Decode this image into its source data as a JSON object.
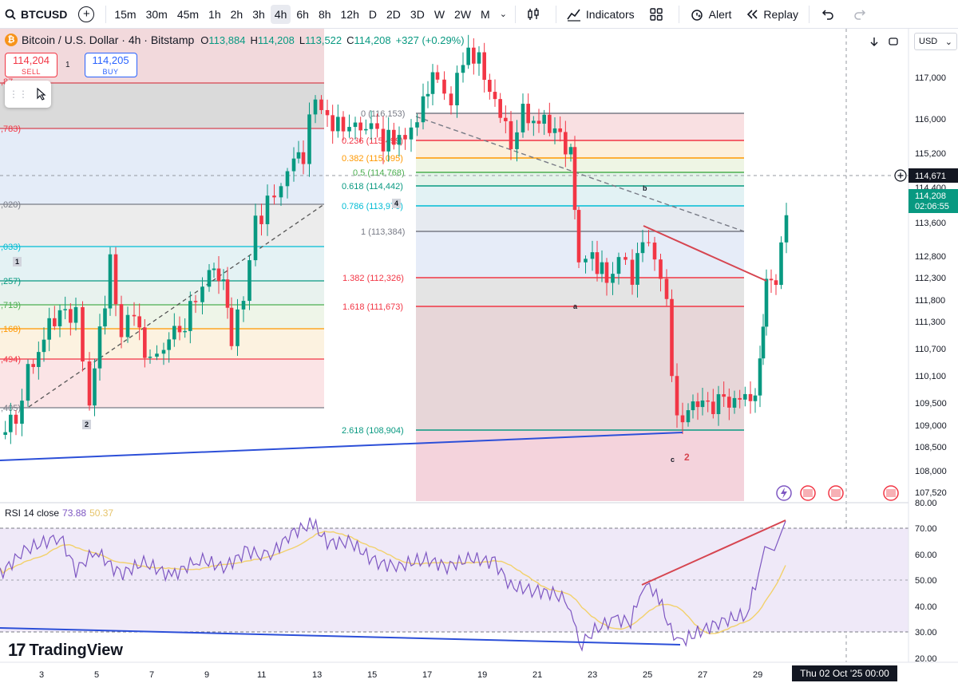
{
  "toolbar": {
    "symbol": "BTCUSD",
    "intervals": [
      "15m",
      "30m",
      "45m",
      "1h",
      "2h",
      "3h",
      "4h",
      "6h",
      "8h",
      "12h",
      "D",
      "2D",
      "3D",
      "W",
      "2W",
      "M"
    ],
    "active_interval": "4h",
    "indicators_label": "Indicators",
    "alert_label": "Alert",
    "replay_label": "Replay"
  },
  "legend": {
    "title": "Bitcoin / U.S. Dollar · 4h · Bitstamp",
    "o_label": "O",
    "o": "113,884",
    "h_label": "H",
    "h": "114,208",
    "l_label": "L",
    "l": "113,522",
    "c_label": "C",
    "c": "114,208",
    "change": "+327 (+0.29%)"
  },
  "trade": {
    "sell_price": "114,204",
    "sell_label": "SELL",
    "spread": "1",
    "buy_price": "114,205",
    "buy_label": "BUY"
  },
  "currency": "USD",
  "price_axis": {
    "ticks": [
      "117,000",
      "116,000",
      "115,200",
      "114,400",
      "113,600",
      "112,800",
      "112,300",
      "111,800",
      "111,300",
      "110,700",
      "110,100",
      "109,500",
      "109,000",
      "108,500",
      "108,000",
      "107,520"
    ],
    "crosshair_price": "114,671",
    "last_price": "114,208",
    "countdown": "02:06:55"
  },
  "fib_left": {
    "labels": [
      ",87..",
      ",783)",
      ",020)",
      ",033)",
      ",257)",
      ",713)",
      ",168)",
      ",494)",
      ",405)"
    ]
  },
  "fib_right": {
    "levels": [
      {
        "label": "0 (116,153)",
        "color": "#787b86"
      },
      {
        "label": "0.236 (115,499)",
        "color": "#f23645"
      },
      {
        "label": "0.382 (115,095)",
        "color": "#ff9800"
      },
      {
        "label": "0.5 (114,768)",
        "color": "#4caf50"
      },
      {
        "label": "0.618 (114,442)",
        "color": "#089981"
      },
      {
        "label": "0.786 (113,976)",
        "color": "#00bcd4"
      },
      {
        "label": "1 (113,384)",
        "color": "#787b86"
      },
      {
        "label": "1.382 (112,326)",
        "color": "#f23645"
      },
      {
        "label": "1.618 (111,673)",
        "color": "#f23645"
      },
      {
        "label": "2.618 (108,904)",
        "color": "#089981"
      }
    ]
  },
  "wave_labels": {
    "w1": "1",
    "w2": "2",
    "w4": "4",
    "a": "a",
    "b": "b",
    "c": "c",
    "w2_red": "2"
  },
  "rsi": {
    "name": "RSI 14 close",
    "value": "73.88",
    "ma_value": "50.37",
    "ticks": [
      "80.00",
      "70.00",
      "60.00",
      "50.00",
      "40.00",
      "30.00",
      "20.00"
    ]
  },
  "time_axis": {
    "ticks": [
      "3",
      "5",
      "7",
      "9",
      "11",
      "13",
      "15",
      "17",
      "19",
      "21",
      "23",
      "25",
      "27",
      "29"
    ],
    "crosshair_time": "Thu 02 Oct '25   00:00"
  },
  "brand": "TradingView",
  "colors": {
    "up": "#089981",
    "down": "#f23645",
    "rsi_line": "#7e57c2",
    "rsi_ma": "#f2d16b",
    "trend_blue": "#2c4fd8",
    "trend_red": "#d64550"
  },
  "chart_data": {
    "type": "candlestick",
    "title": "Bitcoin / U.S. Dollar · 4h · Bitstamp",
    "ylabel": "USD",
    "ylim": [
      107400,
      117800
    ],
    "last_price": 114208,
    "fib_levels_right": [
      116153,
      115499,
      115095,
      114768,
      114442,
      113976,
      113384,
      112326,
      111673,
      108904
    ],
    "rsi_levels": [
      70,
      50,
      30
    ],
    "rsi_range": [
      20,
      80
    ],
    "rsi_last": 73.88,
    "rsi_ma_last": 50.37
  }
}
